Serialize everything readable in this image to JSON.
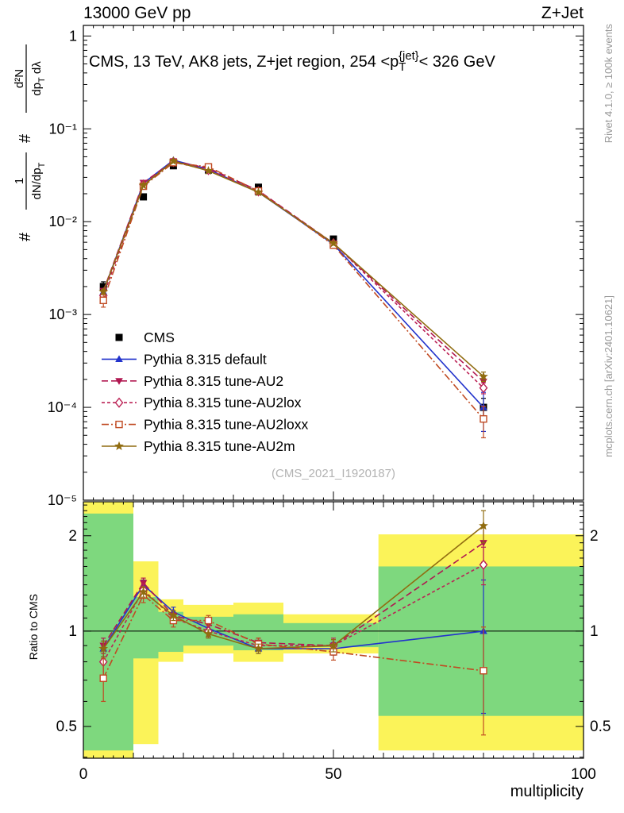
{
  "header": {
    "left": "13000 GeV pp",
    "right": "Z+Jet"
  },
  "watermark": "(CMS_2021_I1920187)",
  "side_texts": {
    "top": "Rivet 4.1.0, ≥ 100k events",
    "bottom": "mcplots.cern.ch [arXiv:2401.10621]"
  },
  "axis_labels": {
    "x": "multiplicity",
    "ratio_y": "Ratio to CMS",
    "main_y": {
      "hash1": "#",
      "frac1_num": "1",
      "frac1_den": "dN/dp_T",
      "hash2": "#",
      "frac2_num": "d²N",
      "frac2_den": "dp_T dλ"
    }
  },
  "colors": {
    "band_yellow": "#fbf359",
    "band_green": "#7ed87e",
    "cms": "#000000",
    "default": "#2233cc",
    "au2": "#b01750",
    "au2lox": "#bb2255",
    "au2loxx": "#c04a22",
    "au2m": "#906c10",
    "frame": "#000000",
    "watermark": "#b3b3b3",
    "side_text": "#999999"
  },
  "chart_data": {
    "type": "line",
    "title": "CMS, 13 TeV, AK8 jets, Z+jet region, 254 <p_T^{jet}< 326 GeV",
    "xlabel": "multiplicity",
    "xlim": [
      0,
      100
    ],
    "x": [
      4,
      12,
      18,
      25,
      35,
      50,
      80
    ],
    "xticks": {
      "values": [
        0,
        50,
        100
      ],
      "labels": [
        "0",
        "50",
        "100"
      ]
    },
    "main_panel": {
      "ylog": true,
      "ylim": [
        1e-05,
        1.3
      ],
      "ytick_values": [
        1,
        0.1,
        0.01,
        0.001,
        0.0001,
        1e-05
      ],
      "ytick_labels": [
        "1",
        "10⁻¹",
        "10⁻²",
        "10⁻³",
        "10⁻⁴",
        "10⁻⁵"
      ],
      "series": [
        {
          "name": "CMS",
          "color_key": "cms",
          "marker": "square",
          "line": "none",
          "values": [
            0.002,
            0.0185,
            0.04,
            0.036,
            0.0235,
            0.0065,
            0.0001
          ],
          "errors": [
            0.00025,
            0.0012,
            0.002,
            0.0015,
            0.0012,
            0.0004,
            2.5e-05
          ]
        },
        {
          "name": "Pythia 8.315 default",
          "color_key": "default",
          "marker": "triangle-up",
          "line": "solid",
          "values": [
            0.00176,
            0.0259,
            0.046,
            0.0367,
            0.0207,
            0.00572,
            0.0001
          ],
          "errors": [
            0.0001,
            0.00093,
            0.0016,
            0.0011,
            0.0007,
            0.00026,
            4.5e-05
          ]
        },
        {
          "name": "Pythia 8.315 tune-AU2",
          "color_key": "au2",
          "marker": "triangle-down",
          "line": "dashed",
          "values": [
            0.0018,
            0.0263,
            0.0448,
            0.0378,
            0.0216,
            0.00585,
            0.00019
          ],
          "errors": [
            0.0001,
            0.00093,
            0.0016,
            0.0011,
            0.0007,
            0.00026,
            2.5e-05
          ]
        },
        {
          "name": "Pythia 8.315 tune-AU2lox",
          "color_key": "au2lox",
          "marker": "diamond-open",
          "line": "dashed2",
          "values": [
            0.0016,
            0.025,
            0.044,
            0.036,
            0.0212,
            0.00585,
            0.000162
          ],
          "errors": [
            0.00018,
            0.0011,
            0.0016,
            0.0014,
            0.0007,
            0.00032,
            2.2e-05
          ]
        },
        {
          "name": "Pythia 8.315 tune-AU2loxx",
          "color_key": "au2loxx",
          "marker": "square-open",
          "line": "dashdot",
          "values": [
            0.00142,
            0.0241,
            0.0432,
            0.0389,
            0.0214,
            0.00559,
            7.5e-05
          ],
          "errors": [
            0.00022,
            0.0013,
            0.002,
            0.0014,
            0.0009,
            0.00032,
            2.8e-05
          ]
        },
        {
          "name": "Pythia 8.315 tune-AU2m",
          "color_key": "au2m",
          "marker": "star",
          "line": "solid",
          "values": [
            0.00176,
            0.0246,
            0.0448,
            0.0353,
            0.0207,
            0.00585,
            0.000215
          ],
          "errors": [
            0.0001,
            0.00093,
            0.0016,
            0.0011,
            0.0007,
            0.00026,
            2.5e-05
          ]
        }
      ]
    },
    "ratio_panel": {
      "ylabel": "Ratio to CMS",
      "ylog": true,
      "ylim": [
        0.397,
        2.56
      ],
      "ytick_values": [
        2,
        1,
        0.5
      ],
      "ytick_labels": [
        "2",
        "1",
        "0.5"
      ],
      "reference_line": 1,
      "series": [
        {
          "name": "Pythia 8.315 default",
          "values": [
            0.88,
            1.4,
            1.15,
            1.02,
            0.88,
            0.88,
            1.0
          ],
          "errors": [
            0.05,
            0.05,
            0.04,
            0.03,
            0.03,
            0.04,
            0.45
          ]
        },
        {
          "name": "Pythia 8.315 tune-AU2",
          "values": [
            0.9,
            1.42,
            1.12,
            1.05,
            0.92,
            0.9,
            1.9
          ],
          "errors": [
            0.05,
            0.05,
            0.04,
            0.03,
            0.03,
            0.04,
            0.25
          ]
        },
        {
          "name": "Pythia 8.315 tune-AU2lox",
          "values": [
            0.8,
            1.35,
            1.1,
            1.0,
            0.9,
            0.9,
            1.62
          ],
          "errors": [
            0.09,
            0.06,
            0.04,
            0.04,
            0.03,
            0.05,
            0.22
          ]
        },
        {
          "name": "Pythia 8.315 tune-AU2loxx",
          "values": [
            0.71,
            1.3,
            1.08,
            1.08,
            0.91,
            0.86,
            0.75
          ],
          "errors": [
            0.11,
            0.07,
            0.05,
            0.04,
            0.04,
            0.05,
            0.28
          ]
        },
        {
          "name": "Pythia 8.315 tune-AU2m",
          "values": [
            0.88,
            1.33,
            1.12,
            0.98,
            0.88,
            0.9,
            2.15
          ],
          "errors": [
            0.05,
            0.05,
            0.04,
            0.03,
            0.03,
            0.04,
            0.25
          ]
        }
      ],
      "bands": {
        "yellow": [
          [
            0,
            10,
            0.397,
            2.56
          ],
          [
            10,
            15,
            0.44,
            1.66
          ],
          [
            15,
            20,
            0.8,
            1.26
          ],
          [
            20,
            30,
            0.85,
            1.21
          ],
          [
            30,
            40,
            0.8,
            1.23
          ],
          [
            40,
            59,
            0.85,
            1.13
          ],
          [
            59,
            100,
            0.42,
            2.02
          ]
        ],
        "green": [
          [
            0,
            10,
            0.42,
            2.35
          ],
          [
            10,
            15,
            0.82,
            1.28
          ],
          [
            15,
            20,
            0.86,
            1.15
          ],
          [
            20,
            30,
            0.9,
            1.11
          ],
          [
            30,
            40,
            0.87,
            1.13
          ],
          [
            40,
            59,
            0.89,
            1.06
          ],
          [
            59,
            100,
            0.54,
            1.6
          ]
        ]
      }
    }
  }
}
